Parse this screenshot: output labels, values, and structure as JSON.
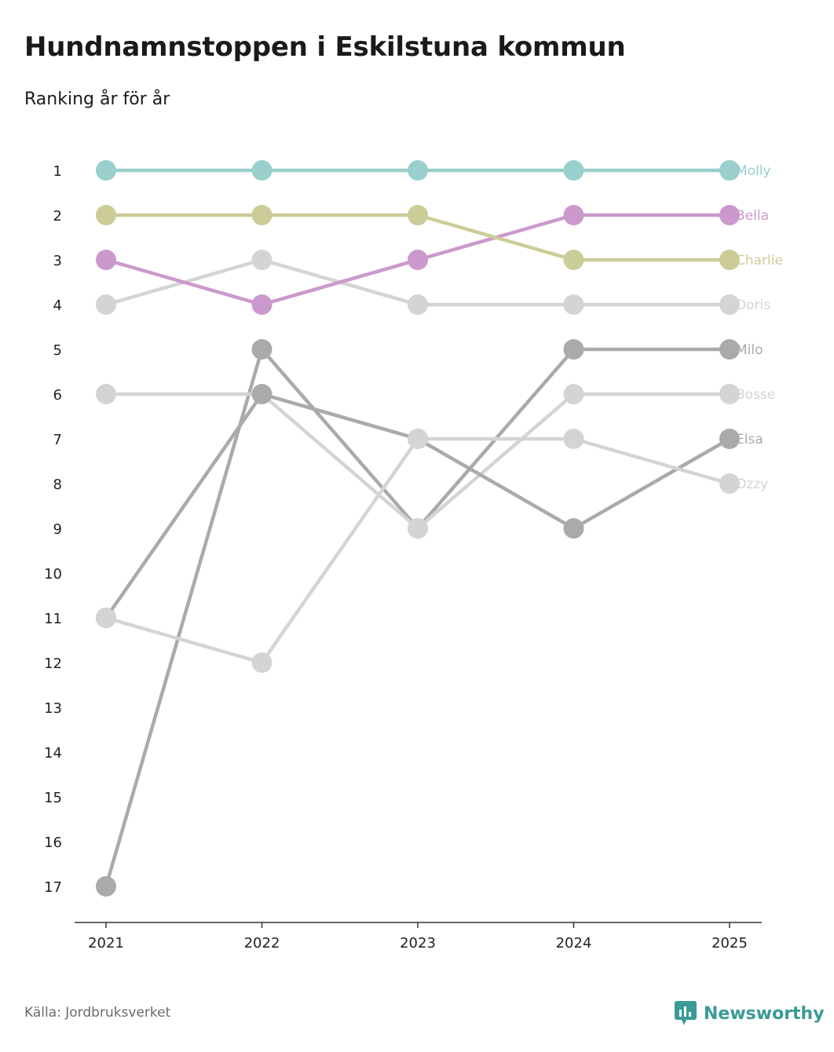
{
  "title": "Hundnamnstoppen i Eskilstuna kommun",
  "subtitle": "Ranking år för år",
  "source": "Källa: Jordbruksverket",
  "brand": {
    "name": "Newsworthy",
    "icon": "newsworthy-logo-icon",
    "color": "#3a9a96"
  },
  "chart_data": {
    "type": "line",
    "subtype": "bump",
    "title": "Hundnamnstoppen i Eskilstuna kommun",
    "subtitle": "Ranking år för år",
    "xlabel": "",
    "ylabel": "",
    "categories": [
      "2021",
      "2022",
      "2023",
      "2024",
      "2025"
    ],
    "y_ticks": [
      "1",
      "2",
      "3",
      "4",
      "5",
      "6",
      "7",
      "8",
      "9",
      "10",
      "11",
      "12",
      "13",
      "14",
      "15",
      "16",
      "17"
    ],
    "ylim": [
      1,
      17
    ],
    "y_inverted": true,
    "series": [
      {
        "name": "Molly",
        "values": [
          1,
          1,
          1,
          1,
          1
        ],
        "color": "#99cfcc"
      },
      {
        "name": "Bella",
        "values": [
          3,
          4,
          3,
          2,
          2
        ],
        "color": "#cc99cc"
      },
      {
        "name": "Charlie",
        "values": [
          2,
          2,
          2,
          3,
          3
        ],
        "color": "#cccc99"
      },
      {
        "name": "Doris",
        "values": [
          4,
          3,
          4,
          4,
          4
        ],
        "color": "#d4d4d4"
      },
      {
        "name": "Milo",
        "values": [
          17,
          5,
          9,
          5,
          5
        ],
        "color": "#aaaaaa"
      },
      {
        "name": "Bosse",
        "values": [
          6,
          6,
          9,
          6,
          6
        ],
        "color": "#d4d4d4"
      },
      {
        "name": "Elsa",
        "values": [
          11,
          6,
          7,
          9,
          7
        ],
        "color": "#aaaaaa"
      },
      {
        "name": "Ozzy",
        "values": [
          11,
          12,
          7,
          7,
          8
        ],
        "color": "#d4d4d4"
      }
    ]
  }
}
